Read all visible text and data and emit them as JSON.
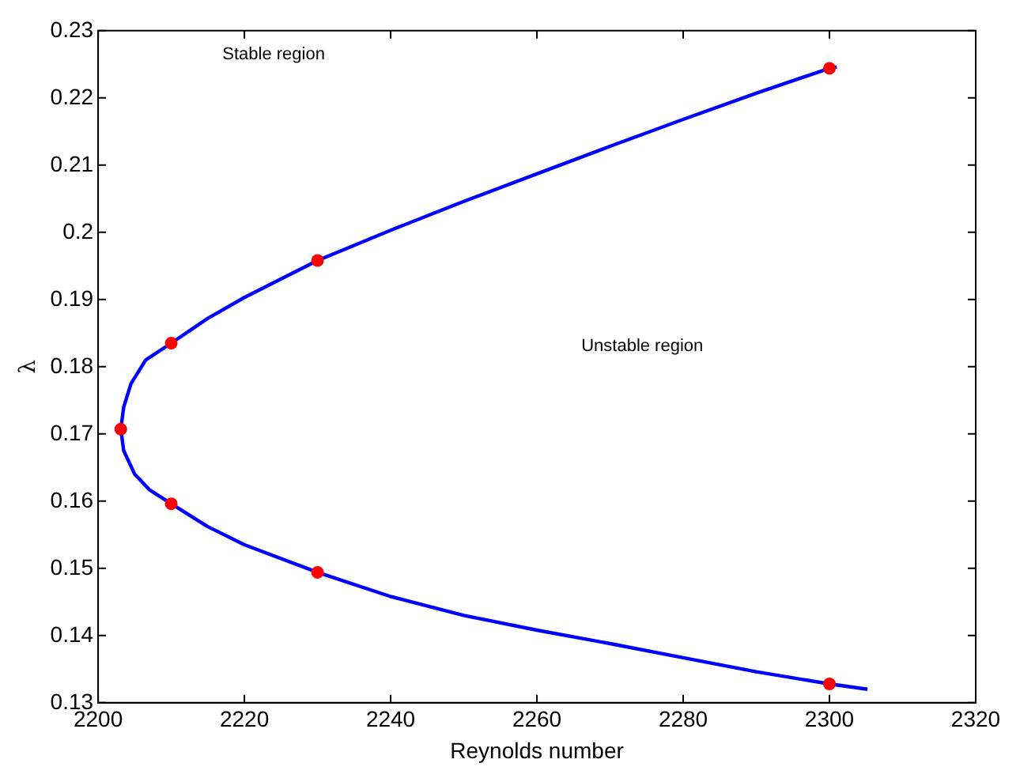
{
  "chart_data": {
    "type": "line",
    "xlabel": "Reynolds number",
    "ylabel": "λ",
    "xlim": [
      2200,
      2320
    ],
    "xticks": [
      2200,
      2220,
      2240,
      2260,
      2280,
      2300,
      2320
    ],
    "ylim": [
      0.13,
      0.23
    ],
    "yticks": [
      0.13,
      0.14,
      0.15,
      0.16,
      0.17,
      0.18,
      0.19,
      0.2,
      0.21,
      0.22,
      0.23
    ],
    "grid": false,
    "legend": false,
    "series": [
      {
        "color": "#0000ff",
        "marker": "none",
        "x": [
          2301,
          2300,
          2290,
          2280,
          2270,
          2260,
          2250,
          2240,
          2230,
          2220,
          2215,
          2210,
          2206.5,
          2204.5,
          2203.5,
          2203.1,
          2203.5,
          2205,
          2207,
          2210,
          2215,
          2220,
          2230,
          2240,
          2250,
          2260,
          2270,
          2280,
          2290,
          2300,
          2305.2
        ],
        "values": [
          0.2246,
          0.2244,
          0.2207,
          0.2168,
          0.2128,
          0.2087,
          0.2046,
          0.2003,
          0.1958,
          0.1903,
          0.1872,
          0.1835,
          0.181,
          0.1775,
          0.174,
          0.1707,
          0.1675,
          0.164,
          0.1617,
          0.1596,
          0.1562,
          0.1535,
          0.1494,
          0.1458,
          0.143,
          0.1408,
          0.1388,
          0.1367,
          0.1346,
          0.1328,
          0.132
        ]
      },
      {
        "type": "scatter",
        "color": "#ff0000",
        "marker": "circle",
        "x": [
          2300,
          2230,
          2210,
          2203.1,
          2210,
          2230,
          2300
        ],
        "values": [
          0.2244,
          0.1958,
          0.1835,
          0.1707,
          0.1596,
          0.1494,
          0.1328
        ]
      }
    ],
    "annotations": [
      "Stable region",
      "Unstable region"
    ]
  }
}
